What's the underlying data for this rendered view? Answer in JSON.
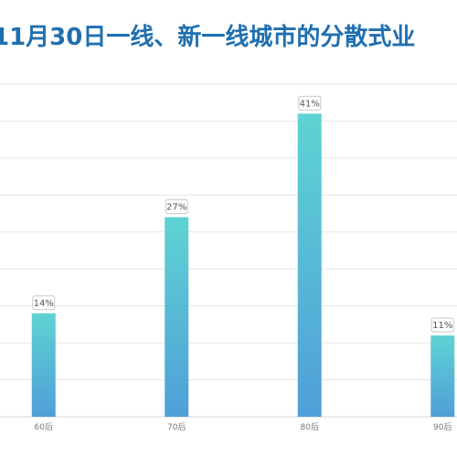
{
  "chart_data": {
    "type": "bar",
    "title": "11月30日一线、新一线城市的分散式业",
    "categories": [
      "60后",
      "70后",
      "80后",
      "90后"
    ],
    "values": [
      14,
      27,
      41,
      11
    ],
    "value_labels": [
      "14%",
      "27%",
      "41%",
      "11%"
    ],
    "ylim": [
      0,
      45
    ],
    "grid": true,
    "bar_gradient": {
      "top": "#5fd3d3",
      "bottom": "#4f9fd8"
    },
    "title_color": "#1f6fb0"
  }
}
